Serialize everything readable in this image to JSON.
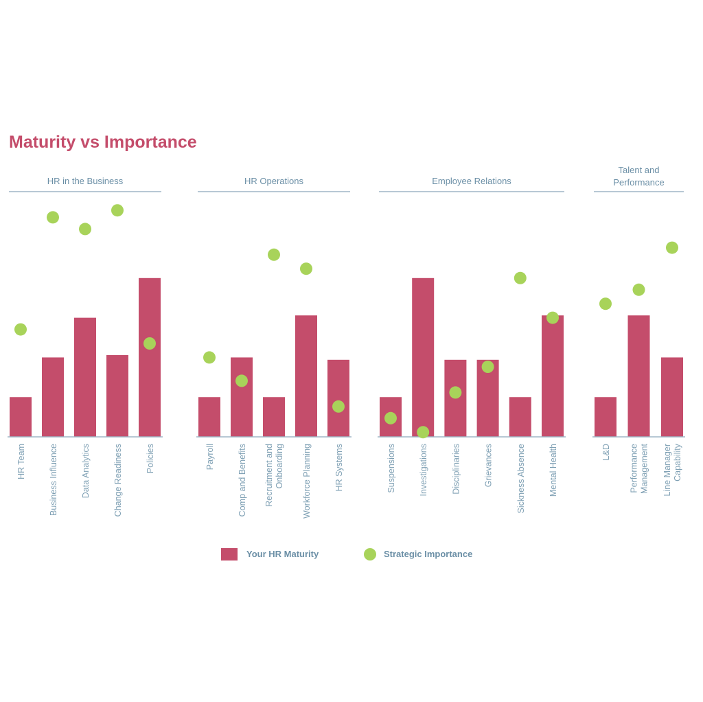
{
  "colors": {
    "bar": "#c44d6b",
    "dot": "#a8d35a",
    "title": "#c44d6b",
    "axis_text": "#7fa0b4",
    "axis_line": "#9fb6c5",
    "legend_text": "#6b8fa6"
  },
  "chart_data": {
    "type": "bar",
    "title": "Maturity vs Importance",
    "xlabel": "",
    "ylabel": "",
    "ylim": [
      0,
      100
    ],
    "grid": false,
    "legend_position": "bottom-center",
    "groups": [
      {
        "name": "HR in the Business",
        "categories": [
          "HR Team",
          "Business Influence",
          "Data Analytics",
          "Change Readiness",
          "Policies"
        ]
      },
      {
        "name": "HR Operations",
        "categories": [
          "Payroll",
          "Comp and Benefits",
          "Recruitment and Onboarding",
          "Workforce Planning",
          "HR Systems"
        ]
      },
      {
        "name": "Employee Relations",
        "categories": [
          "Suspensions",
          "Investigations",
          "Disciplinaries",
          "Grievances",
          "Sickness Absence",
          "Mental Health"
        ]
      },
      {
        "name": "Talent and Performance",
        "categories": [
          "L&D",
          "Performance Management",
          "Line Manager Capability"
        ]
      }
    ],
    "series": [
      {
        "name": "Your HR Maturity",
        "kind": "bar",
        "values": [
          17,
          34,
          51,
          35,
          68,
          17,
          34,
          17,
          52,
          33,
          17,
          68,
          33,
          33,
          17,
          52,
          17,
          52,
          34
        ]
      },
      {
        "name": "Strategic Importance",
        "kind": "dot",
        "values": [
          46,
          94,
          89,
          97,
          40,
          34,
          24,
          78,
          72,
          13,
          8,
          2,
          19,
          30,
          68,
          51,
          57,
          63,
          81
        ]
      }
    ]
  },
  "legend": {
    "maturity_label": "Your HR Maturity",
    "importance_label": "Strategic Importance"
  }
}
